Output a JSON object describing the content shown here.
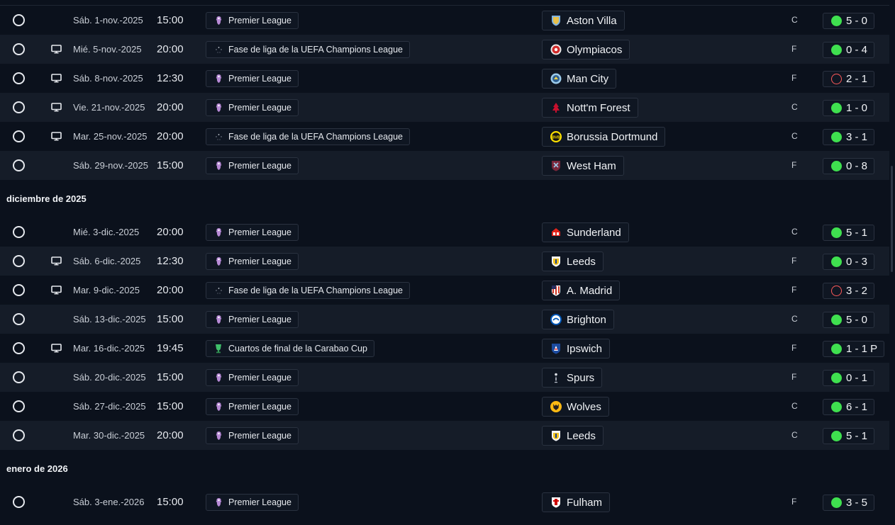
{
  "groups": [
    {
      "month": "",
      "matches": [
        {
          "tv": false,
          "date": "Sáb. 1-nov.-2025",
          "time": "15:00",
          "competition": "Premier League",
          "comp_icon": "premier-league",
          "team": "Aston Villa",
          "crest": "aston-villa",
          "venue": "C",
          "outcome": "win",
          "score": "5 - 0"
        },
        {
          "tv": true,
          "date": "Mié. 5-nov.-2025",
          "time": "20:00",
          "competition": "Fase de liga de la UEFA Champions League",
          "comp_icon": "champions-league",
          "team": "Olympiacos",
          "crest": "olympiacos",
          "venue": "F",
          "outcome": "win",
          "score": "0 - 4"
        },
        {
          "tv": true,
          "date": "Sáb. 8-nov.-2025",
          "time": "12:30",
          "competition": "Premier League",
          "comp_icon": "premier-league",
          "team": "Man City",
          "crest": "man-city",
          "venue": "F",
          "outcome": "loss",
          "score": "2 - 1"
        },
        {
          "tv": true,
          "date": "Vie. 21-nov.-2025",
          "time": "20:00",
          "competition": "Premier League",
          "comp_icon": "premier-league",
          "team": "Nott'm Forest",
          "crest": "nottm-forest",
          "venue": "C",
          "outcome": "win",
          "score": "1 - 0"
        },
        {
          "tv": true,
          "date": "Mar. 25-nov.-2025",
          "time": "20:00",
          "competition": "Fase de liga de la UEFA Champions League",
          "comp_icon": "champions-league",
          "team": "Borussia Dortmund",
          "crest": "dortmund",
          "venue": "C",
          "outcome": "win",
          "score": "3 - 1"
        },
        {
          "tv": false,
          "date": "Sáb. 29-nov.-2025",
          "time": "15:00",
          "competition": "Premier League",
          "comp_icon": "premier-league",
          "team": "West Ham",
          "crest": "west-ham",
          "venue": "F",
          "outcome": "win",
          "score": "0 - 8"
        }
      ]
    },
    {
      "month": "diciembre de 2025",
      "matches": [
        {
          "tv": false,
          "date": "Mié. 3-dic.-2025",
          "time": "20:00",
          "competition": "Premier League",
          "comp_icon": "premier-league",
          "team": "Sunderland",
          "crest": "sunderland",
          "venue": "C",
          "outcome": "win",
          "score": "5 - 1"
        },
        {
          "tv": true,
          "date": "Sáb. 6-dic.-2025",
          "time": "12:30",
          "competition": "Premier League",
          "comp_icon": "premier-league",
          "team": "Leeds",
          "crest": "leeds",
          "venue": "F",
          "outcome": "win",
          "score": "0 - 3"
        },
        {
          "tv": true,
          "date": "Mar. 9-dic.-2025",
          "time": "20:00",
          "competition": "Fase de liga de la UEFA Champions League",
          "comp_icon": "champions-league",
          "team": "A. Madrid",
          "crest": "atletico",
          "venue": "F",
          "outcome": "loss",
          "score": "3 - 2"
        },
        {
          "tv": false,
          "date": "Sáb. 13-dic.-2025",
          "time": "15:00",
          "competition": "Premier League",
          "comp_icon": "premier-league",
          "team": "Brighton",
          "crest": "brighton",
          "venue": "C",
          "outcome": "win",
          "score": "5 - 0"
        },
        {
          "tv": true,
          "date": "Mar. 16-dic.-2025",
          "time": "19:45",
          "competition": "Cuartos de final de la Carabao Cup",
          "comp_icon": "carabao-cup",
          "team": "Ipswich",
          "crest": "ipswich",
          "venue": "F",
          "outcome": "win",
          "score": "1 - 1 P"
        },
        {
          "tv": false,
          "date": "Sáb. 20-dic.-2025",
          "time": "15:00",
          "competition": "Premier League",
          "comp_icon": "premier-league",
          "team": "Spurs",
          "crest": "spurs",
          "venue": "F",
          "outcome": "win",
          "score": "0 - 1"
        },
        {
          "tv": false,
          "date": "Sáb. 27-dic.-2025",
          "time": "15:00",
          "competition": "Premier League",
          "comp_icon": "premier-league",
          "team": "Wolves",
          "crest": "wolves",
          "venue": "C",
          "outcome": "win",
          "score": "6 - 1"
        },
        {
          "tv": false,
          "date": "Mar. 30-dic.-2025",
          "time": "20:00",
          "competition": "Premier League",
          "comp_icon": "premier-league",
          "team": "Leeds",
          "crest": "leeds",
          "venue": "C",
          "outcome": "win",
          "score": "5 - 1"
        }
      ]
    },
    {
      "month": "enero de 2026",
      "matches": [
        {
          "tv": false,
          "date": "Sáb. 3-ene.-2026",
          "time": "15:00",
          "competition": "Premier League",
          "comp_icon": "premier-league",
          "team": "Fulham",
          "crest": "fulham",
          "venue": "F",
          "outcome": "win",
          "score": "3 - 5"
        }
      ]
    }
  ],
  "colors": {
    "background": "#0b111c",
    "alt_row": "#151c28",
    "win": "#3fe04f",
    "loss": "#ff5a5a"
  }
}
